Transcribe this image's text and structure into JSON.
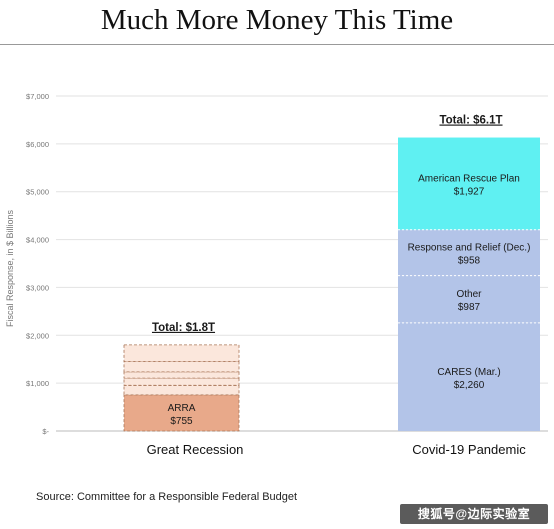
{
  "title": "Much More Money This Time",
  "source": "Source: Committee for a Responsible Federal Budget",
  "watermark": "搜狐号@边际实验室",
  "chart_data": {
    "type": "bar",
    "stacked": true,
    "ylabel": "Fiscal Response, in $ Billions",
    "ylim": [
      0,
      7000
    ],
    "yticks": [
      0,
      1000,
      2000,
      3000,
      4000,
      5000,
      6000,
      7000
    ],
    "ytick_labels": [
      "$-",
      "$1,000",
      "$2,000",
      "$3,000",
      "$4,000",
      "$5,000",
      "$6,000",
      "$7,000"
    ],
    "grid": true,
    "categories": [
      "Great Recession",
      "Covid-19 Pandemic"
    ],
    "totals": [
      "Total: $1.8T",
      "Total: $6.1T"
    ],
    "stacks": [
      {
        "category": "Great Recession",
        "segments": [
          {
            "name": "ARRA",
            "value": 755,
            "label": "$755",
            "color": "#e8a98a",
            "style": "dashed"
          },
          {
            "name": "",
            "value": 200,
            "label": "",
            "color": "#fbe7dc",
            "style": "dashed"
          },
          {
            "name": "",
            "value": 150,
            "label": "",
            "color": "#fbe7dc",
            "style": "dashed"
          },
          {
            "name": "",
            "value": 130,
            "label": "",
            "color": "#fbe7dc",
            "style": "dashed"
          },
          {
            "name": "",
            "value": 220,
            "label": "",
            "color": "#fbe7dc",
            "style": "dashed"
          },
          {
            "name": "",
            "value": 345,
            "label": "",
            "color": "#fbe7dc",
            "style": "dashed"
          }
        ]
      },
      {
        "category": "Covid-19 Pandemic",
        "segments": [
          {
            "name": "CARES (Mar.)",
            "value": 2260,
            "label": "$2,260",
            "color": "#b3c4e8",
            "style": "solid"
          },
          {
            "name": "Other",
            "value": 987,
            "label": "$987",
            "color": "#b3c4e8",
            "style": "solid"
          },
          {
            "name": "Response and Relief (Dec.)",
            "value": 958,
            "label": "$958",
            "color": "#b3c4e8",
            "style": "solid"
          },
          {
            "name": "American Rescue Plan",
            "value": 1927,
            "label": "$1,927",
            "color": "#5ff0f2",
            "style": "solid"
          }
        ]
      }
    ]
  }
}
